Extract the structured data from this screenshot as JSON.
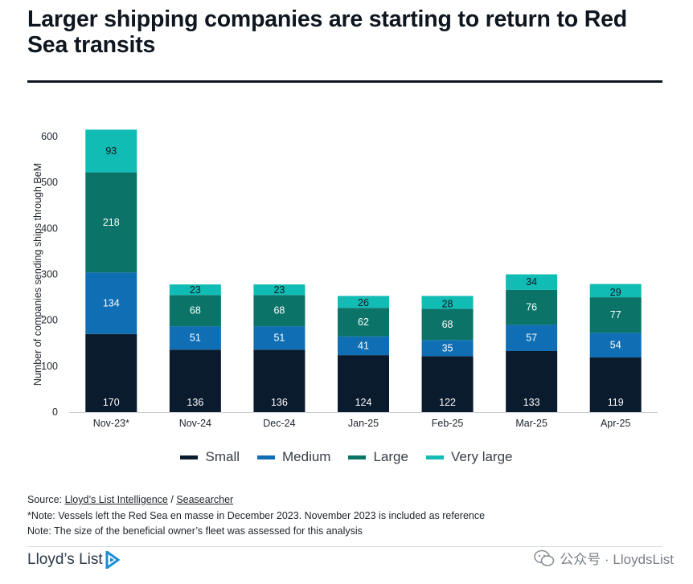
{
  "title": "Larger shipping companies are starting to return to Red Sea transits",
  "colors": {
    "small": "#0b1b2e",
    "medium": "#0f6eb4",
    "large": "#0b7368",
    "very_large": "#10bcb3"
  },
  "chart_data": {
    "type": "bar",
    "stacked": true,
    "categories": [
      "Nov-23*",
      "Nov-24",
      "Dec-24",
      "Jan-25",
      "Feb-25",
      "Mar-25",
      "Apr-25"
    ],
    "series": [
      {
        "name": "Small",
        "values": [
          170,
          136,
          136,
          124,
          122,
          133,
          119
        ]
      },
      {
        "name": "Medium",
        "values": [
          134,
          51,
          51,
          41,
          35,
          57,
          54
        ]
      },
      {
        "name": "Large",
        "values": [
          218,
          68,
          68,
          62,
          68,
          76,
          77
        ]
      },
      {
        "name": "Very large",
        "values": [
          93,
          23,
          23,
          26,
          28,
          34,
          29
        ]
      }
    ],
    "ylabel": "Number of companies sending ships through BeM",
    "xlabel": "",
    "ylim": [
      0,
      600
    ],
    "yticks": [
      0,
      100,
      200,
      300,
      400,
      500,
      600
    ],
    "grid": false,
    "legend_position": "bottom"
  },
  "legend": [
    "Small",
    "Medium",
    "Large",
    "Very large"
  ],
  "notes": {
    "source_prefix": "Source: ",
    "source_link1": "Lloyd’s List Intelligence",
    "source_sep": " / ",
    "source_link2": "Seasearcher",
    "note1": "*Note: Vessels left the Red Sea en masse in December 2023. November 2023 is included as reference",
    "note2": "Note: The size of the beneficial owner’s fleet was assessed for this analysis"
  },
  "logo_text": "Lloyd’s List",
  "watermark": "公众号 · LloydsList"
}
